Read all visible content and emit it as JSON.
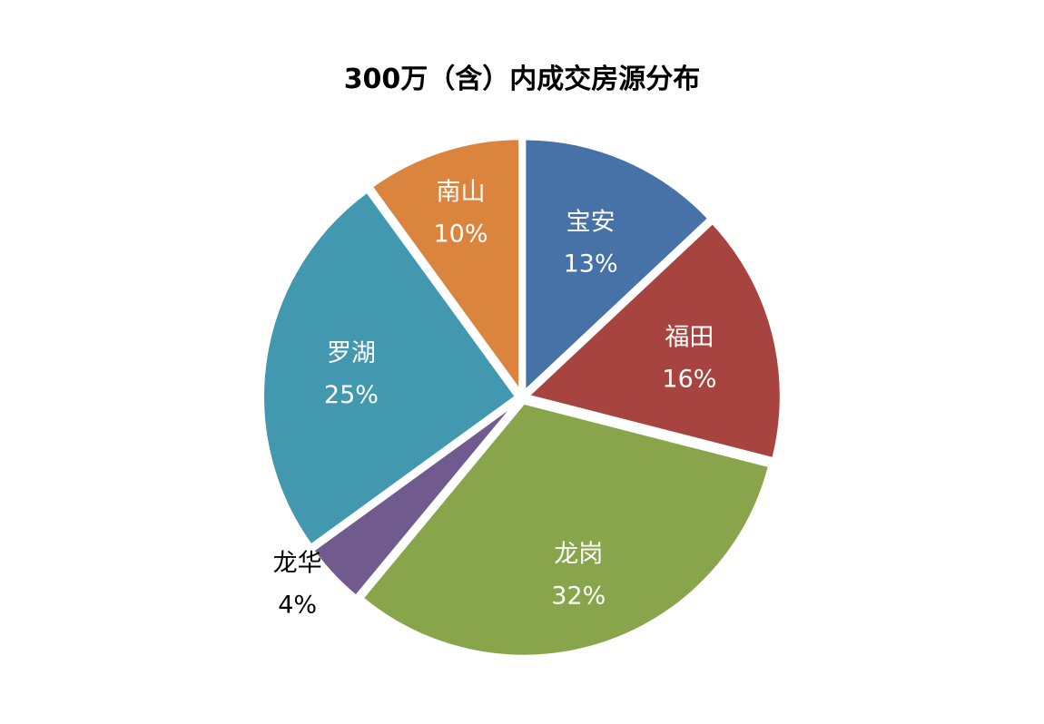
{
  "chart_data": {
    "type": "pie",
    "title": "300万（含）内成交房源分布",
    "slices": [
      {
        "name": "宝安",
        "label": "13%",
        "value": 13,
        "color": "#4672A8"
      },
      {
        "name": "福田",
        "label": "16%",
        "value": 16,
        "color": "#A8443F"
      },
      {
        "name": "龙岗",
        "label": "32%",
        "value": 32,
        "color": "#89A54C"
      },
      {
        "name": "龙华",
        "label": "4%",
        "value": 4,
        "color": "#715A8E"
      },
      {
        "name": "罗湖",
        "label": "25%",
        "value": 25,
        "color": "#4198AF"
      },
      {
        "name": "南山",
        "label": "10%",
        "value": 10,
        "color": "#DB843D"
      }
    ],
    "start_angle_deg": 0,
    "direction": "clockwise"
  }
}
